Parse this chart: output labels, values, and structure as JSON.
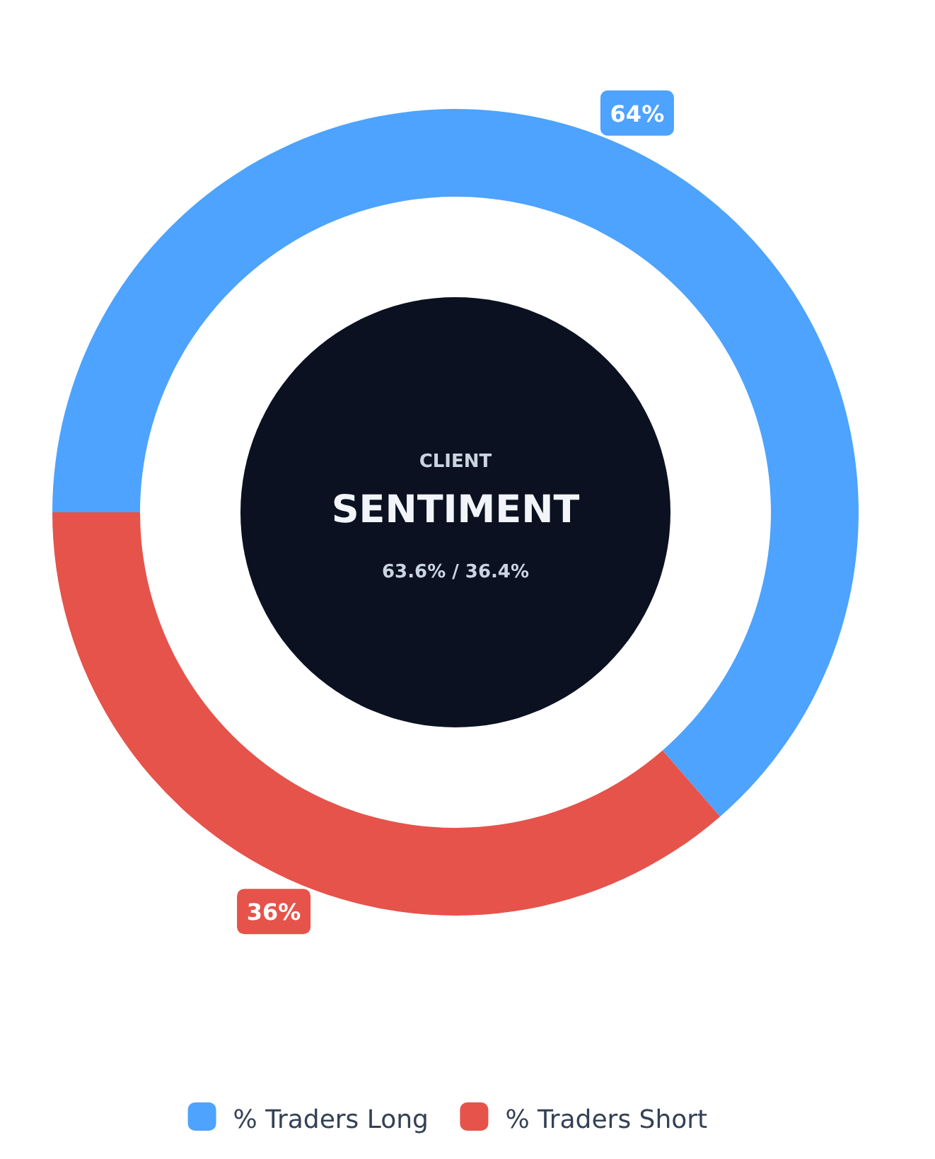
{
  "chart_data": {
    "type": "donut",
    "subtitle": "CLIENT",
    "title": "SENTIMENT",
    "annotations": [
      "63.6% / 36.4%"
    ],
    "categories": [
      "% Traders Long",
      "% Traders Short"
    ],
    "values": [
      63.6,
      36.4
    ],
    "colors": [
      "#4da3fd",
      "#e5534b"
    ],
    "value_labels": [
      "64%",
      "36%"
    ],
    "legend": "bottom"
  }
}
